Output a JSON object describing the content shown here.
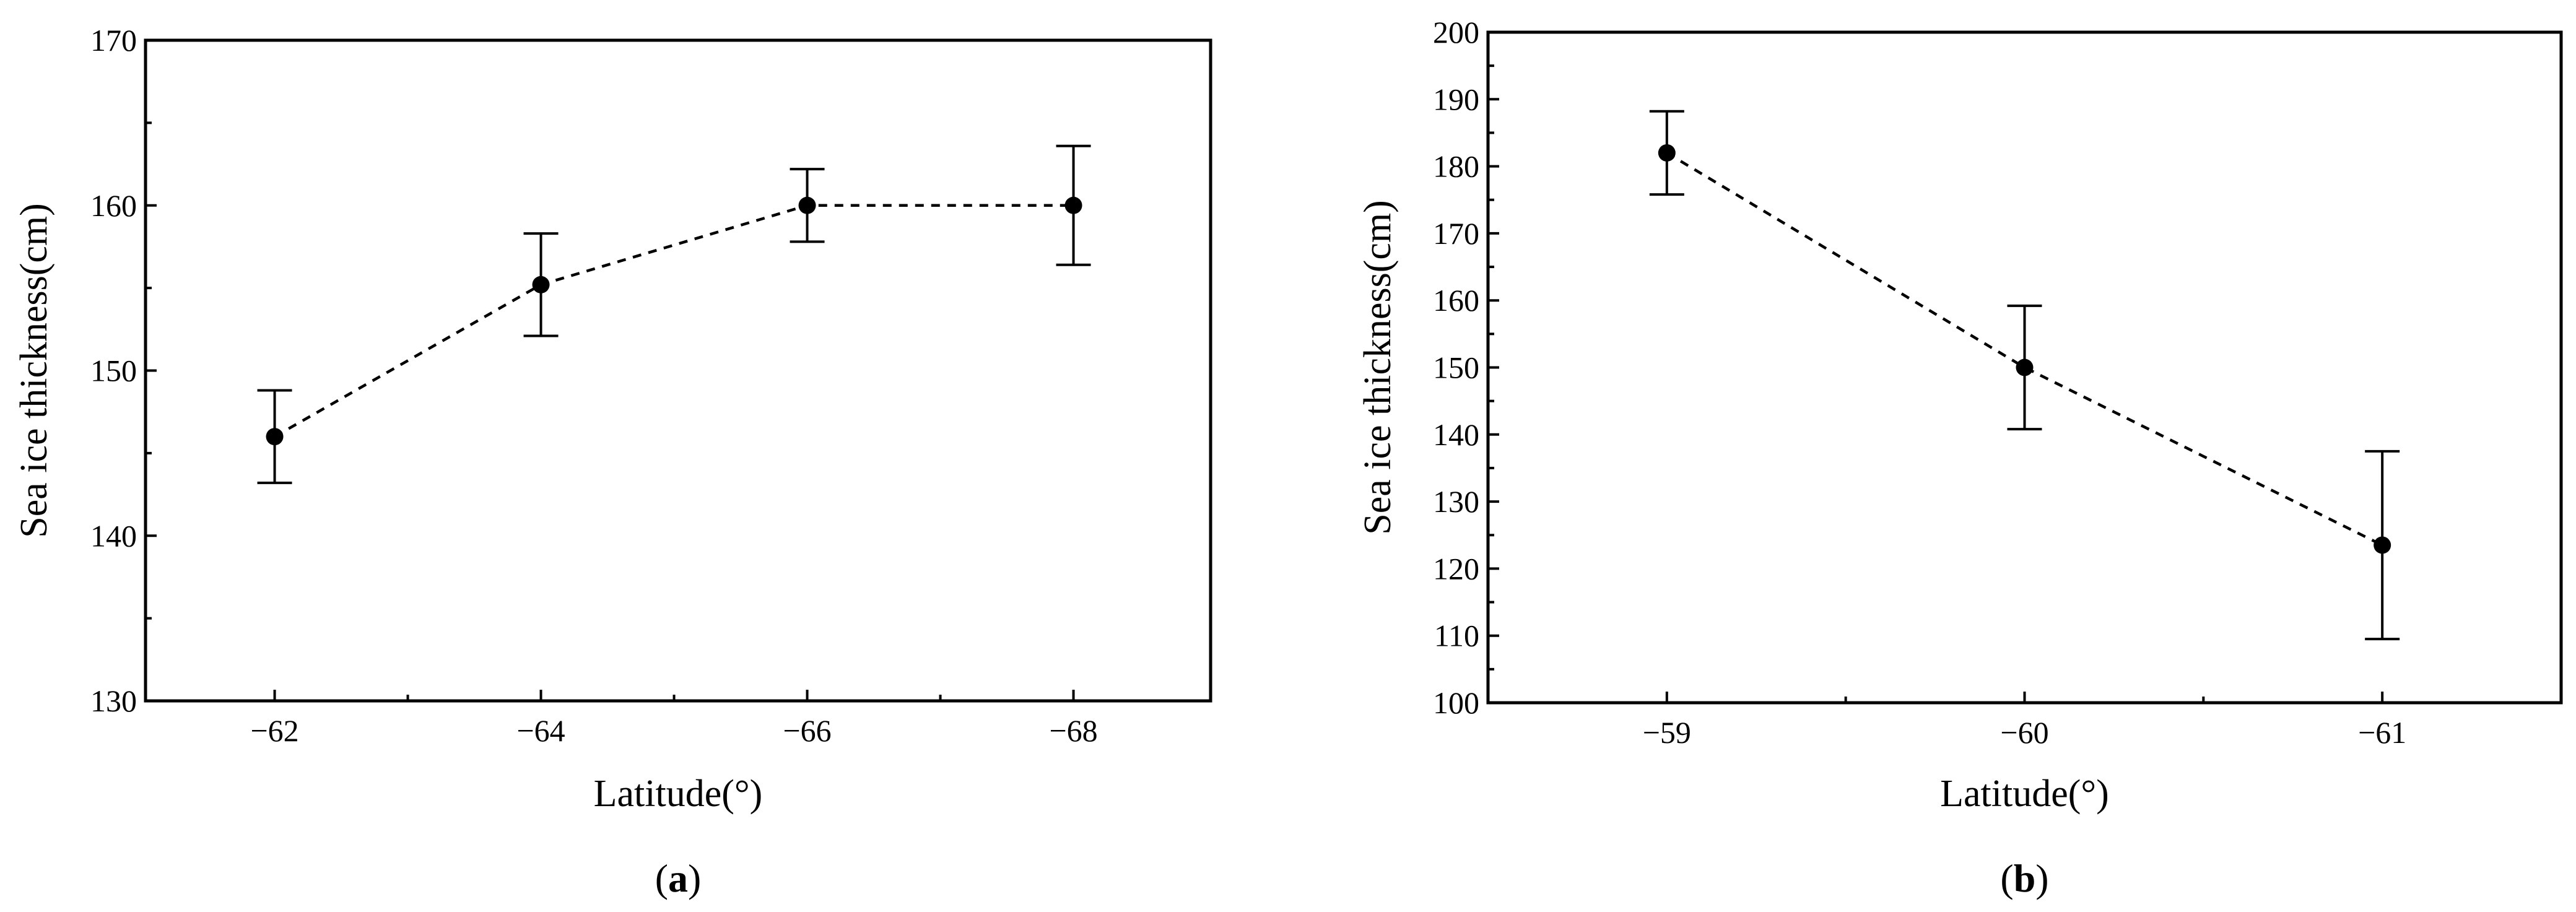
{
  "chart_data": [
    {
      "type": "scatter",
      "panel_label": "a",
      "xlabel": "Latitude(°)",
      "ylabel": "Sea ice thickness(cm)",
      "x_ticks": [
        -62,
        -64,
        -66,
        -68
      ],
      "x_tick_labels": [
        "−62",
        "−64",
        "−66",
        "−68"
      ],
      "xlim": [
        -61.03,
        -69.03
      ],
      "ylim": [
        130,
        170
      ],
      "y_ticks": [
        130,
        140,
        150,
        160,
        170
      ],
      "y_tick_labels": [
        "130",
        "140",
        "150",
        "160",
        "170"
      ],
      "grid": false,
      "series": [
        {
          "x": [
            -62,
            -64,
            -66,
            -68
          ],
          "y": [
            146,
            155.2,
            160,
            160
          ],
          "error": [
            2.8,
            3.1,
            2.2,
            3.6
          ]
        }
      ]
    },
    {
      "type": "scatter",
      "panel_label": "b",
      "xlabel": "Latitude(°)",
      "ylabel": "Sea ice thickness(cm)",
      "x_ticks": [
        -59,
        -60,
        -61
      ],
      "x_tick_labels": [
        "−59",
        "−60",
        "−61"
      ],
      "xlim": [
        -58.5,
        -61.5
      ],
      "ylim": [
        100,
        200
      ],
      "y_ticks": [
        100,
        110,
        120,
        130,
        140,
        150,
        160,
        170,
        180,
        190,
        200
      ],
      "y_tick_labels": [
        "100",
        "110",
        "120",
        "130",
        "140",
        "150",
        "160",
        "170",
        "180",
        "190",
        "200"
      ],
      "grid": false,
      "series": [
        {
          "x": [
            -59,
            -60,
            -61
          ],
          "y": [
            182,
            150,
            123.5
          ],
          "error": [
            6.2,
            9.2,
            14
          ]
        }
      ]
    }
  ]
}
